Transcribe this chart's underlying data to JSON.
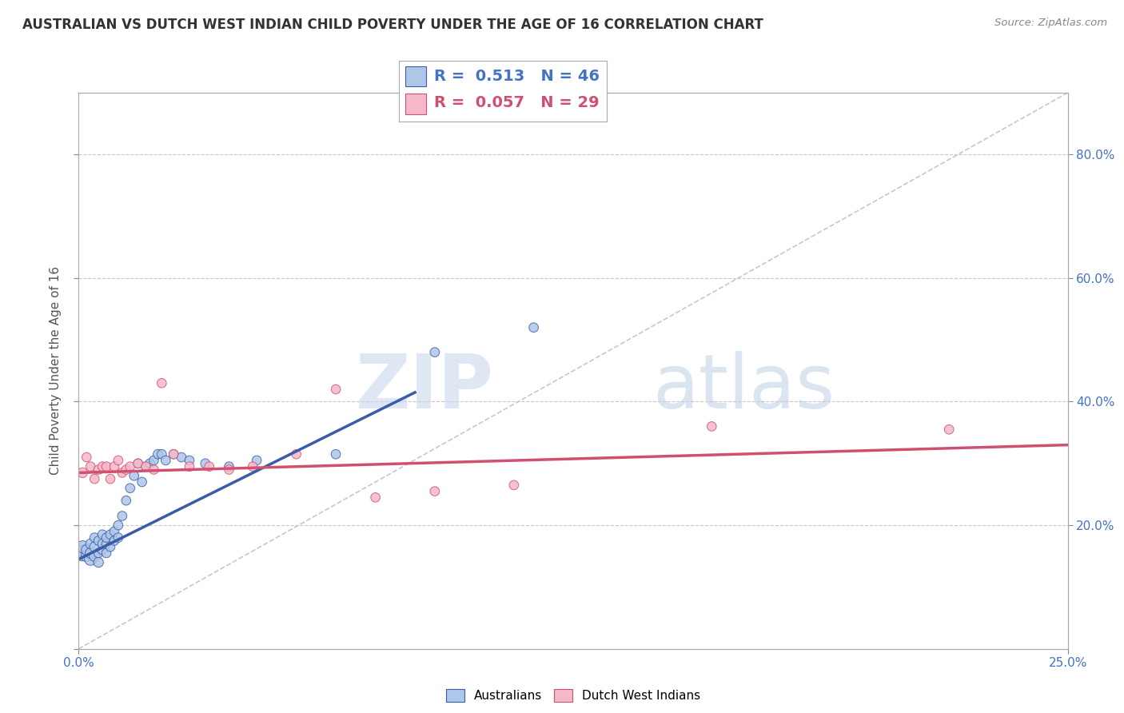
{
  "title": "AUSTRALIAN VS DUTCH WEST INDIAN CHILD POVERTY UNDER THE AGE OF 16 CORRELATION CHART",
  "source": "Source: ZipAtlas.com",
  "ylabel": "Child Poverty Under the Age of 16",
  "xlim": [
    0.0,
    0.25
  ],
  "ylim": [
    0.0,
    0.9
  ],
  "yticks": [
    0.0,
    0.2,
    0.4,
    0.6,
    0.8
  ],
  "right_yticks": [
    0.2,
    0.4,
    0.6,
    0.8
  ],
  "right_yticklabels": [
    "20.0%",
    "40.0%",
    "60.0%",
    "80.0%"
  ],
  "background_color": "#ffffff",
  "grid_color": "#c8c8c8",
  "watermark_zip": "ZIP",
  "watermark_atlas": "atlas",
  "r_australian": 0.513,
  "n_australian": 46,
  "r_dutch": 0.057,
  "n_dutch": 29,
  "australian_color": "#aec6e8",
  "dutch_color": "#f5b8c8",
  "line_australian_color": "#3a5ca8",
  "line_dutch_color": "#d05070",
  "diagonal_color": "#c0c8d8",
  "australians_x": [
    0.001,
    0.001,
    0.002,
    0.002,
    0.003,
    0.003,
    0.003,
    0.004,
    0.004,
    0.004,
    0.005,
    0.005,
    0.005,
    0.006,
    0.006,
    0.006,
    0.007,
    0.007,
    0.007,
    0.008,
    0.008,
    0.009,
    0.009,
    0.01,
    0.01,
    0.011,
    0.012,
    0.013,
    0.014,
    0.015,
    0.016,
    0.017,
    0.018,
    0.019,
    0.02,
    0.021,
    0.022,
    0.024,
    0.026,
    0.028,
    0.032,
    0.038,
    0.045,
    0.065,
    0.09,
    0.115
  ],
  "australians_y": [
    0.155,
    0.165,
    0.15,
    0.16,
    0.145,
    0.155,
    0.17,
    0.15,
    0.165,
    0.18,
    0.14,
    0.155,
    0.175,
    0.16,
    0.17,
    0.185,
    0.155,
    0.17,
    0.18,
    0.165,
    0.185,
    0.175,
    0.19,
    0.18,
    0.2,
    0.215,
    0.24,
    0.26,
    0.28,
    0.3,
    0.27,
    0.295,
    0.3,
    0.305,
    0.315,
    0.315,
    0.305,
    0.315,
    0.31,
    0.305,
    0.3,
    0.295,
    0.305,
    0.315,
    0.48,
    0.52
  ],
  "australians_sizes": [
    200,
    120,
    100,
    90,
    120,
    90,
    80,
    90,
    80,
    70,
    80,
    70,
    70,
    70,
    70,
    70,
    70,
    70,
    70,
    70,
    70,
    70,
    70,
    70,
    70,
    70,
    70,
    70,
    70,
    70,
    70,
    70,
    70,
    70,
    70,
    70,
    70,
    70,
    70,
    70,
    70,
    70,
    70,
    70,
    70,
    70
  ],
  "dutch_x": [
    0.001,
    0.002,
    0.003,
    0.004,
    0.005,
    0.006,
    0.007,
    0.008,
    0.009,
    0.01,
    0.011,
    0.012,
    0.013,
    0.015,
    0.017,
    0.019,
    0.021,
    0.024,
    0.028,
    0.033,
    0.038,
    0.044,
    0.055,
    0.065,
    0.075,
    0.09,
    0.11,
    0.16,
    0.22
  ],
  "dutch_y": [
    0.285,
    0.31,
    0.295,
    0.275,
    0.29,
    0.295,
    0.295,
    0.275,
    0.295,
    0.305,
    0.285,
    0.29,
    0.295,
    0.3,
    0.295,
    0.29,
    0.43,
    0.315,
    0.295,
    0.295,
    0.29,
    0.295,
    0.315,
    0.42,
    0.245,
    0.255,
    0.265,
    0.36,
    0.355
  ],
  "dutch_sizes": [
    80,
    70,
    70,
    70,
    70,
    70,
    70,
    70,
    70,
    70,
    70,
    70,
    70,
    70,
    70,
    70,
    70,
    70,
    70,
    70,
    70,
    70,
    70,
    70,
    70,
    70,
    70,
    70,
    70
  ],
  "aus_line_x0": 0.0,
  "aus_line_y0": 0.145,
  "aus_line_x1": 0.085,
  "aus_line_y1": 0.415,
  "dutch_line_x0": 0.0,
  "dutch_line_y0": 0.285,
  "dutch_line_x1": 0.25,
  "dutch_line_y1": 0.33
}
